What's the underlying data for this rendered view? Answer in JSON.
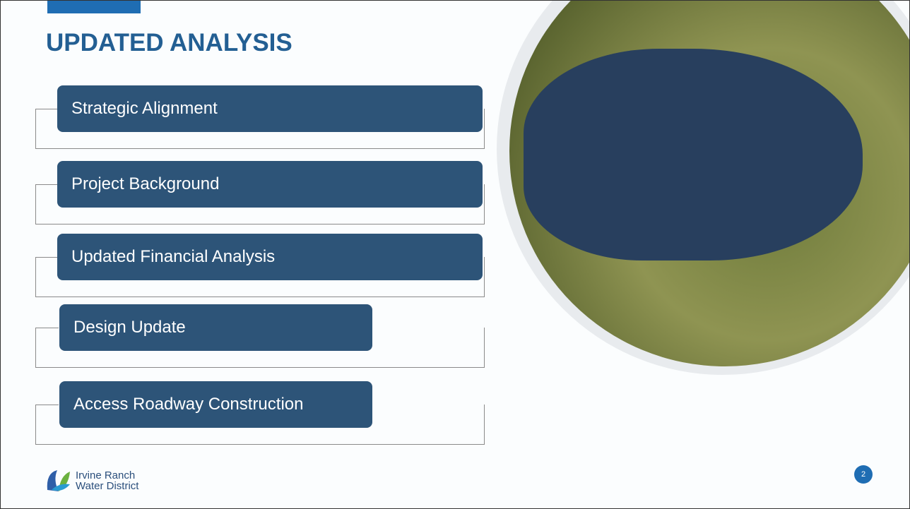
{
  "header": {
    "title": "UPDATED ANALYSIS"
  },
  "items": [
    "Strategic Alignment",
    "Project Background",
    "Updated Financial Analysis",
    "Design Update",
    "Access Roadway Construction"
  ],
  "logo": {
    "line1": "Irvine Ranch",
    "line2": "Water District"
  },
  "page_number": "2"
}
